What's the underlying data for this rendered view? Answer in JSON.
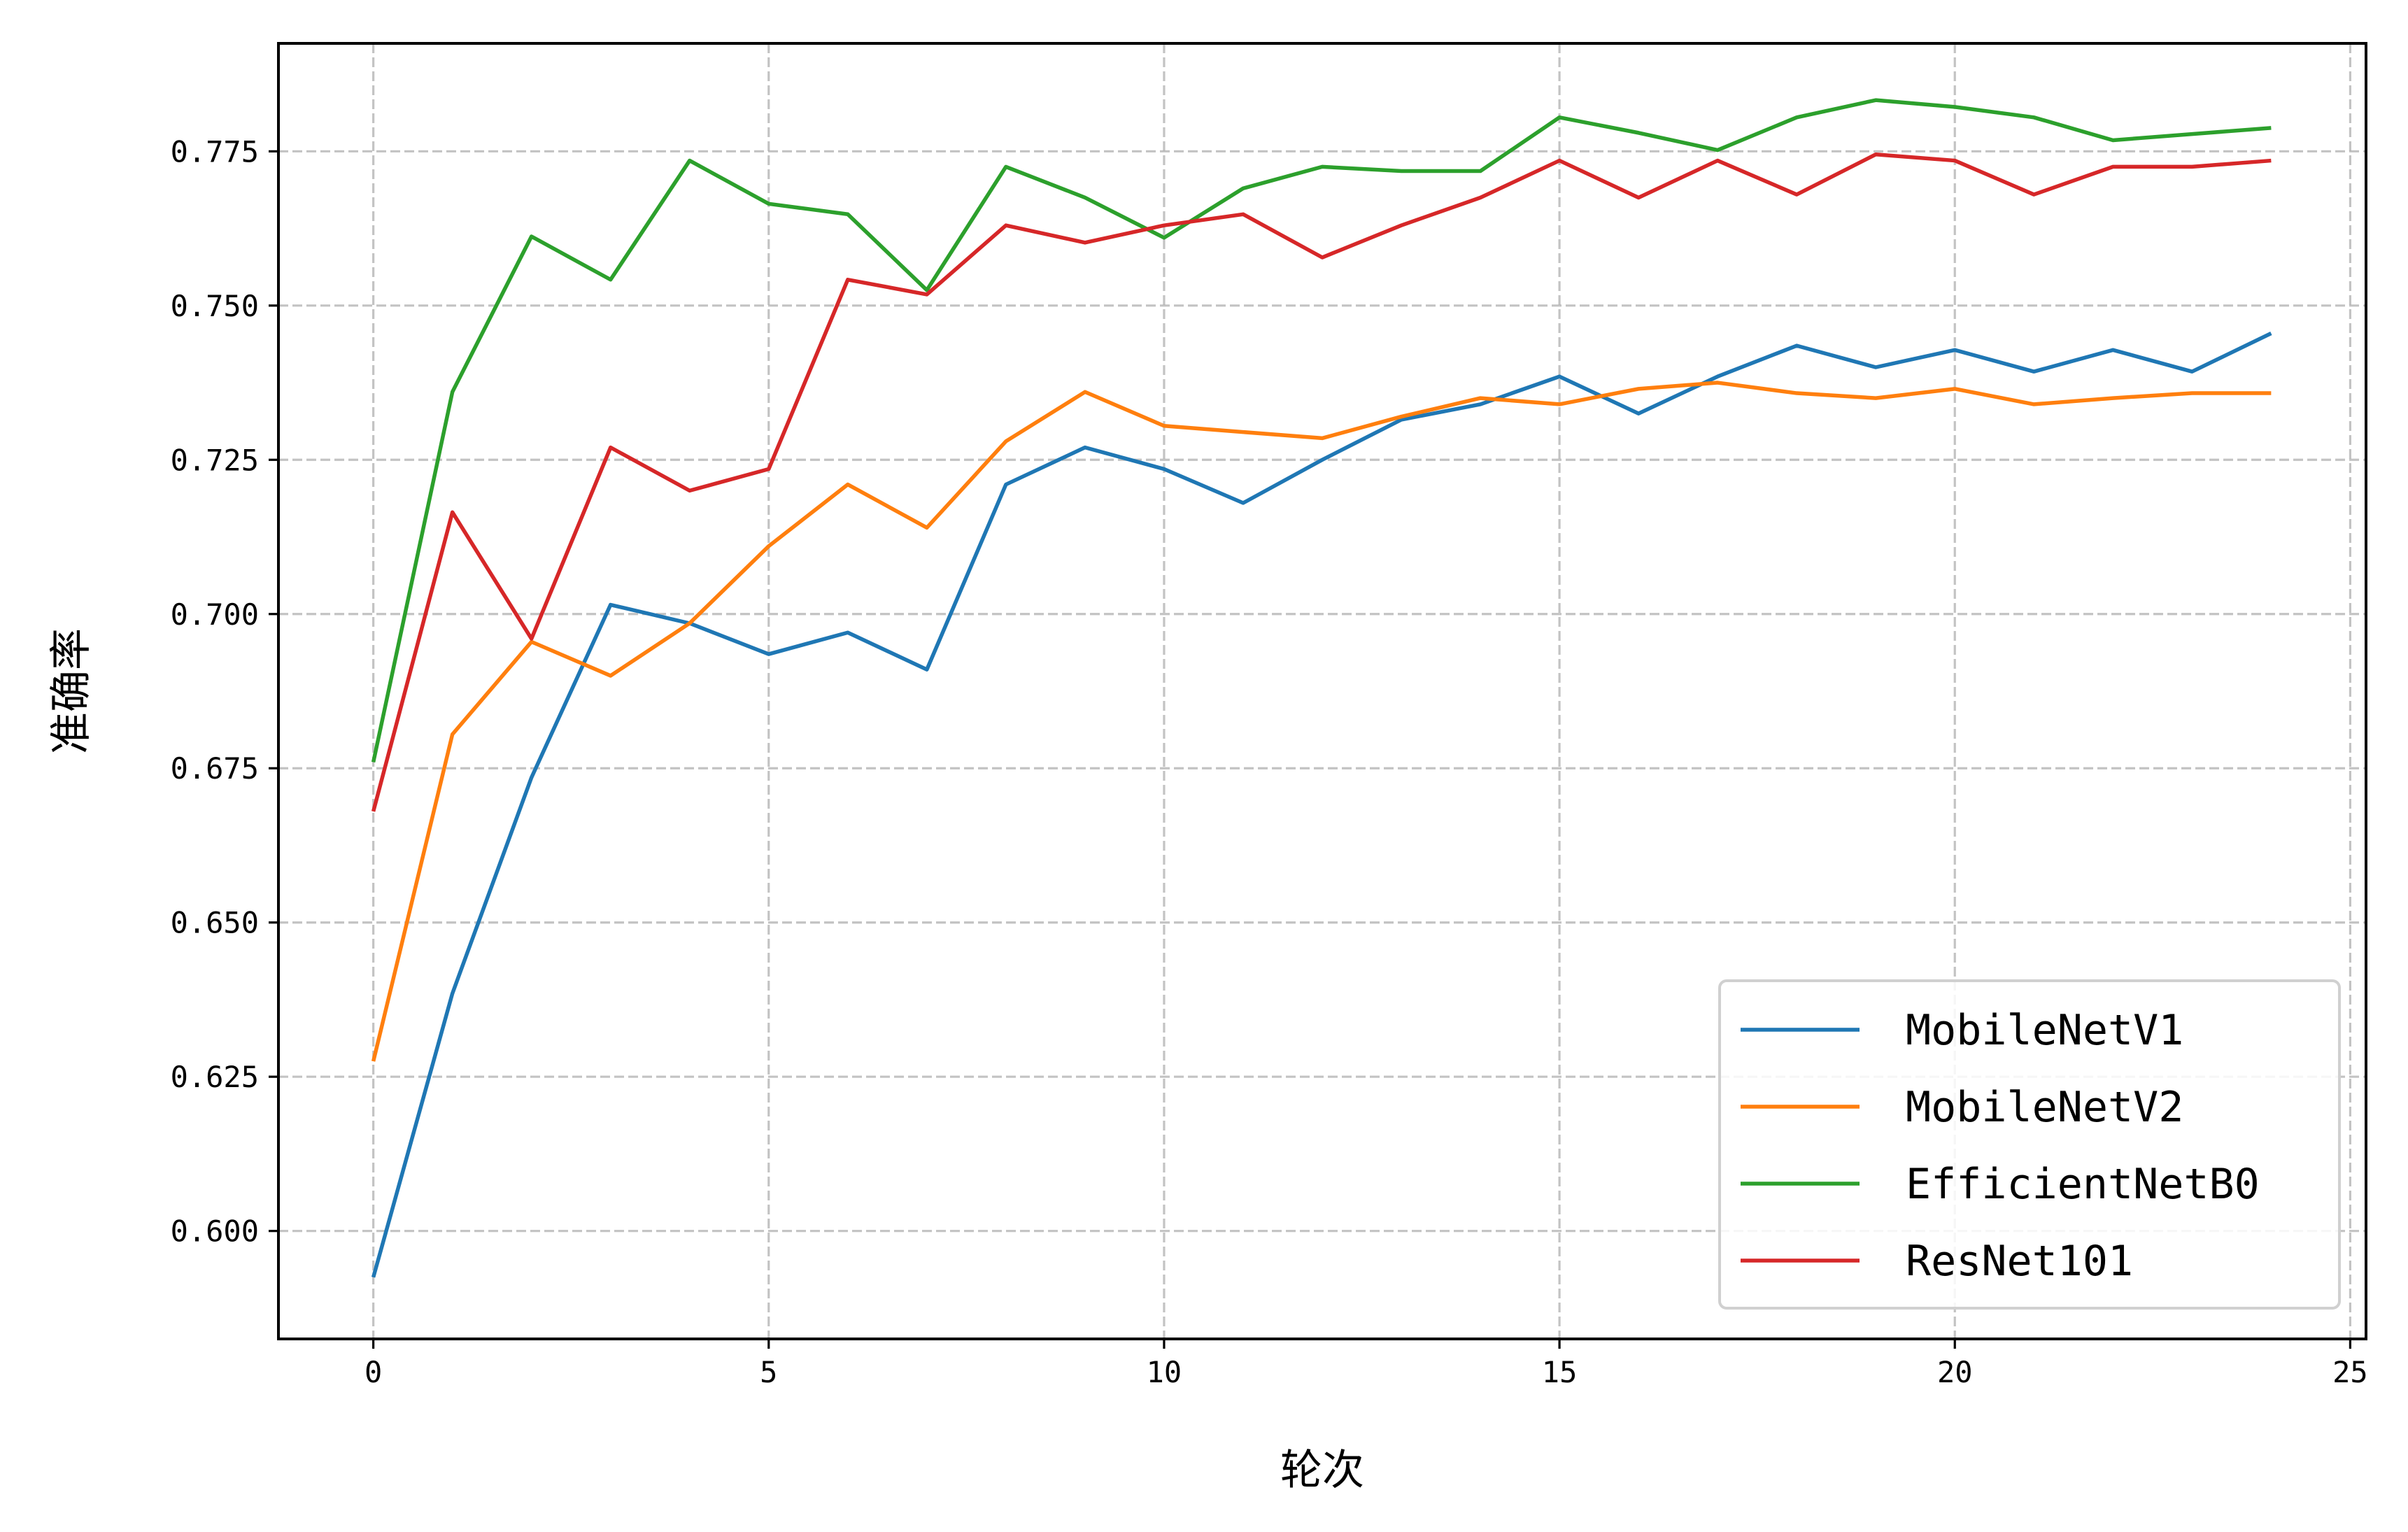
{
  "chart_data": {
    "type": "line",
    "title": "",
    "xlabel": "轮次",
    "ylabel": "准确率",
    "xlim": [
      -1.2,
      25.2
    ],
    "ylim": [
      0.5825,
      0.7925
    ],
    "xticks": [
      0,
      5,
      10,
      15,
      20,
      25
    ],
    "xtick_labels": [
      "0",
      "5",
      "10",
      "15",
      "20",
      "25"
    ],
    "yticks": [
      0.6,
      0.625,
      0.65,
      0.675,
      0.7,
      0.725,
      0.75,
      0.775
    ],
    "ytick_labels": [
      "0.600",
      "0.625",
      "0.650",
      "0.675",
      "0.700",
      "0.725",
      "0.750",
      "0.775"
    ],
    "grid": true,
    "legend_position": "bottom-right",
    "x": [
      0,
      1,
      2,
      3,
      4,
      5,
      6,
      7,
      8,
      9,
      10,
      11,
      12,
      13,
      14,
      15,
      16,
      17,
      18,
      19,
      20,
      21,
      22,
      23,
      24
    ],
    "series": [
      {
        "name": "MobileNetV1",
        "color": "#1f77b4",
        "values": [
          0.5925,
          0.6385,
          0.6735,
          0.7015,
          0.6985,
          0.6935,
          0.697,
          0.691,
          0.721,
          0.727,
          0.7235,
          0.718,
          0.725,
          0.7315,
          0.734,
          0.7385,
          0.7325,
          0.7385,
          0.7435,
          0.74,
          0.7428,
          0.7393,
          0.7428,
          0.7393,
          0.7455
        ]
      },
      {
        "name": "MobileNetV2",
        "color": "#ff7f0e",
        "values": [
          0.6275,
          0.6805,
          0.6955,
          0.69,
          0.6985,
          0.711,
          0.721,
          0.714,
          0.728,
          0.736,
          0.7305,
          0.7295,
          0.7285,
          0.732,
          0.735,
          0.734,
          0.7365,
          0.7375,
          0.7358,
          0.735,
          0.7365,
          0.734,
          0.735,
          0.7358,
          0.7358
        ]
      },
      {
        "name": "EfficientNetB0",
        "color": "#2ca02c",
        "values": [
          0.676,
          0.736,
          0.7612,
          0.7542,
          0.7735,
          0.7665,
          0.7648,
          0.7525,
          0.7725,
          0.7675,
          0.761,
          0.769,
          0.7725,
          0.7718,
          0.7718,
          0.7805,
          0.778,
          0.7752,
          0.7805,
          0.7833,
          0.7822,
          0.7805,
          0.7768,
          0.7778,
          0.7788
        ]
      },
      {
        "name": "ResNet101",
        "color": "#d62728",
        "values": [
          0.668,
          0.7165,
          0.696,
          0.727,
          0.72,
          0.7235,
          0.7542,
          0.7518,
          0.763,
          0.7602,
          0.763,
          0.7648,
          0.7578,
          0.763,
          0.7675,
          0.7735,
          0.7675,
          0.7735,
          0.768,
          0.7745,
          0.7735,
          0.768,
          0.7725,
          0.7725,
          0.7735
        ]
      }
    ]
  }
}
